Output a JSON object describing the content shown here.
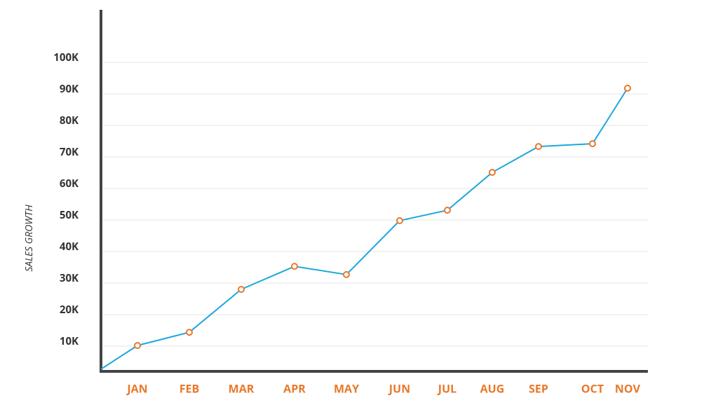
{
  "chart_data": {
    "type": "line",
    "y_label": "SALES GROWTH",
    "categories": [
      null,
      "JAN",
      "FEB",
      "MAR",
      "APR",
      "MAY",
      "JUN",
      "JUL",
      "AUG",
      "SEP",
      "OCT",
      "NOV"
    ],
    "values": [
      2700,
      10200,
      14400,
      28000,
      35300,
      32700,
      49800,
      53100,
      65100,
      73300,
      74200,
      91800
    ],
    "color": "#1ea8dc",
    "marker_color": "#e8782a",
    "ylim": [
      2000,
      116000
    ],
    "yticks": [
      {
        "value": 10000,
        "label": "10K"
      },
      {
        "value": 20000,
        "label": "20K"
      },
      {
        "value": 30000,
        "label": "30K"
      },
      {
        "value": 40000,
        "label": "40K"
      },
      {
        "value": 50000,
        "label": "50K"
      },
      {
        "value": 60000,
        "label": "60K"
      },
      {
        "value": 70000,
        "label": "70K"
      },
      {
        "value": 80000,
        "label": "80K"
      },
      {
        "value": 90000,
        "label": "90K"
      },
      {
        "value": 100000,
        "label": "100K"
      }
    ],
    "grid": true
  }
}
